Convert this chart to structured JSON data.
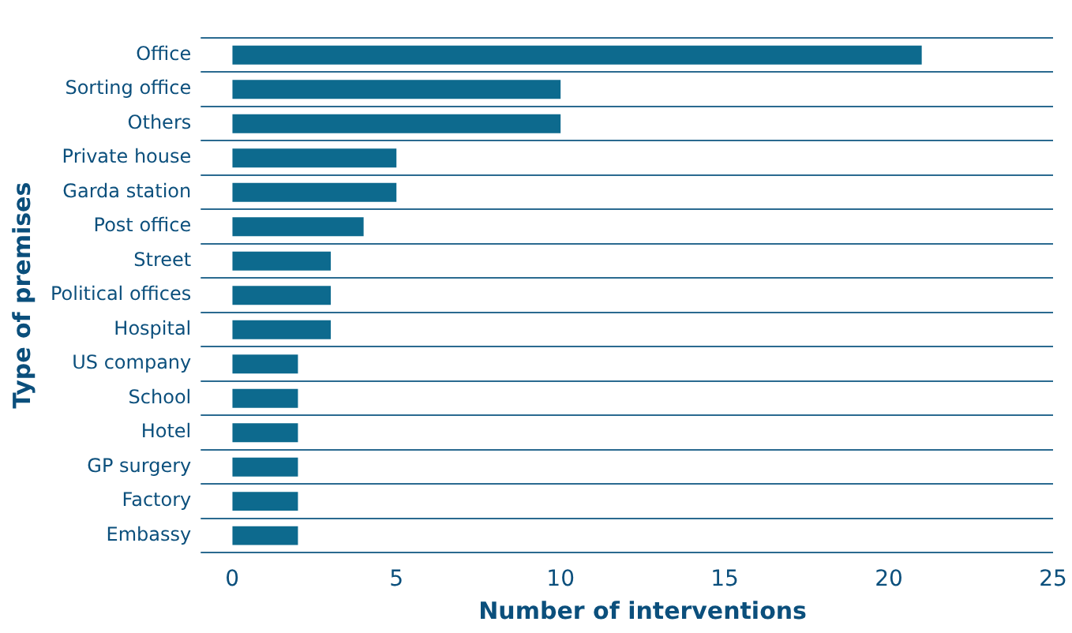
{
  "chart_data": {
    "type": "bar",
    "orientation": "horizontal",
    "xlabel": "Number of interventions",
    "ylabel": "Type of premises",
    "categories": [
      "Office",
      "Sorting office",
      "Others",
      "Private house",
      "Garda station",
      "Post office",
      "Street",
      "Political offices",
      "Hospital",
      "US company",
      "School",
      "Hotel",
      "GP surgery",
      "Factory",
      "Embassy"
    ],
    "values": [
      21,
      10,
      10,
      5,
      5,
      4,
      3,
      3,
      3,
      2,
      2,
      2,
      2,
      2,
      2
    ],
    "color": "#0d6a8e",
    "xlim": [
      0,
      25
    ],
    "xticks": [
      0,
      5,
      10,
      15,
      20,
      25
    ],
    "grid": "y"
  }
}
